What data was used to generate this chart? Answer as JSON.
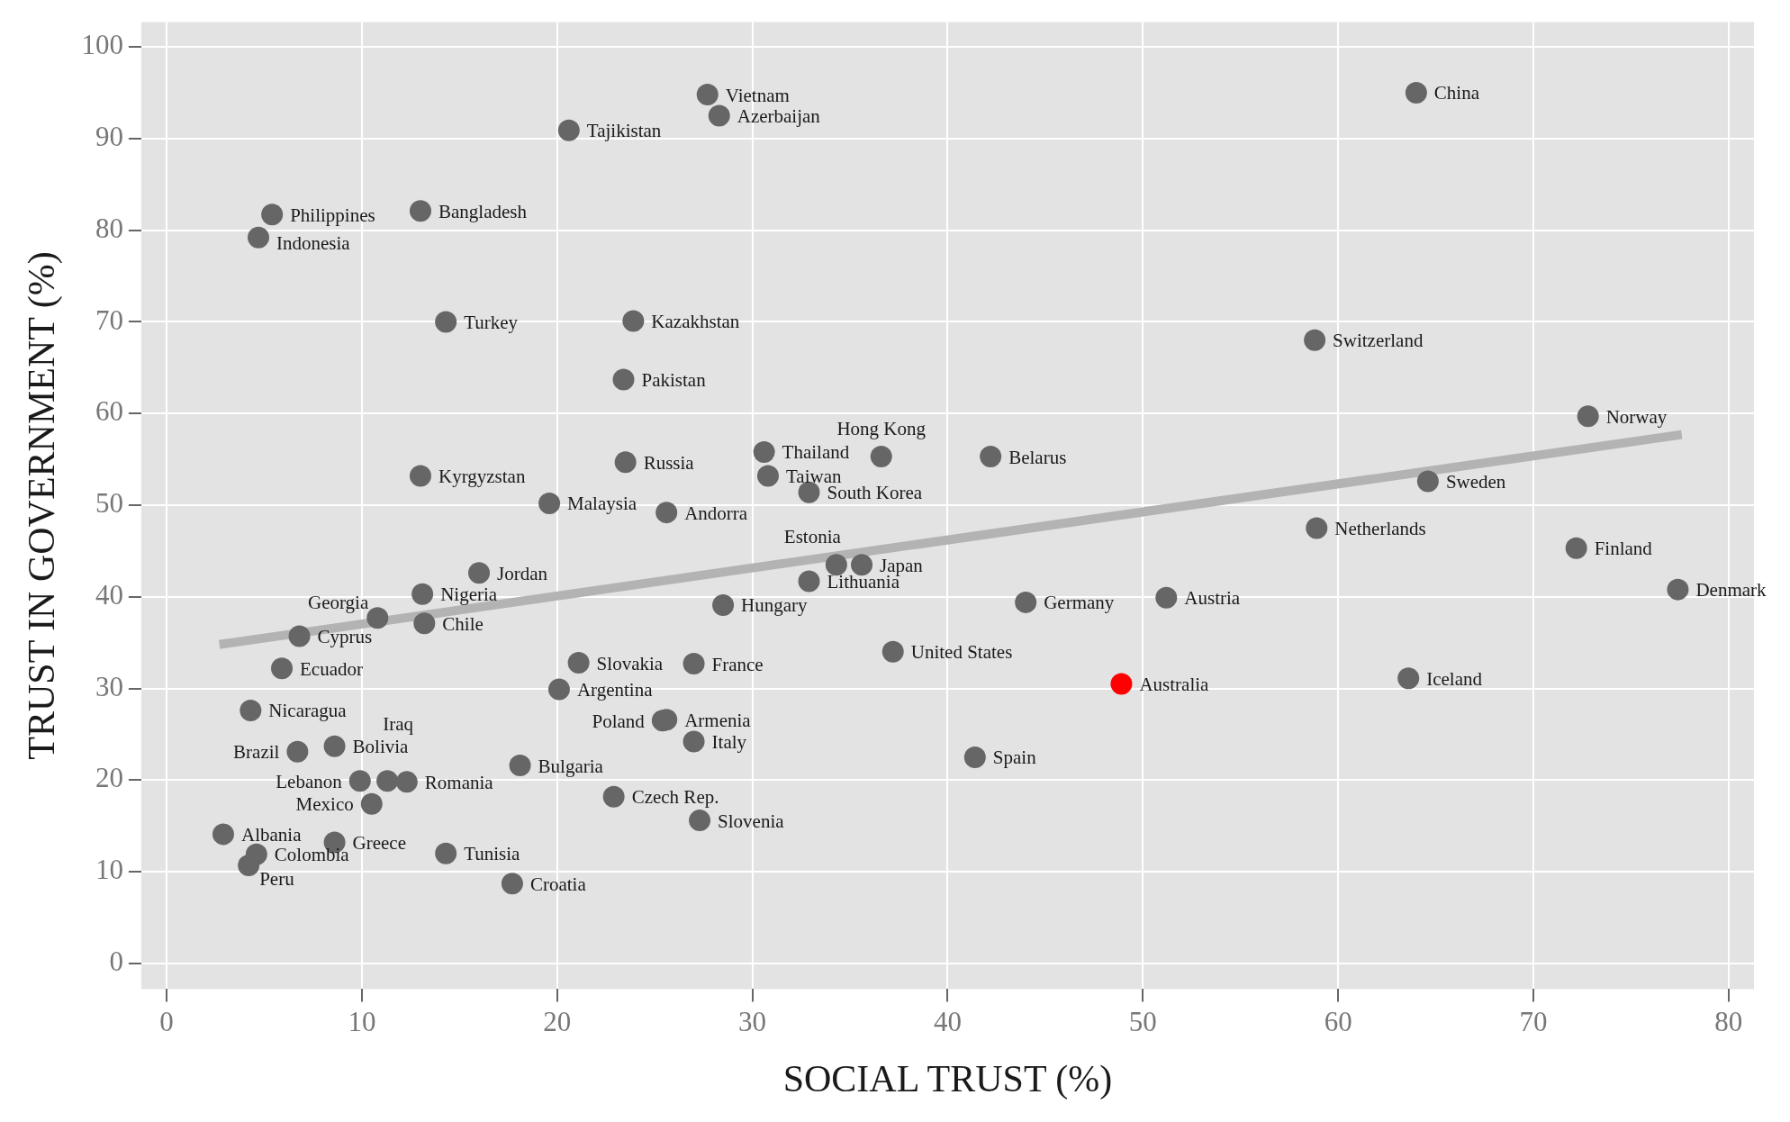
{
  "chart_data": {
    "type": "scatter",
    "xlabel": "SOCIAL TRUST (%)",
    "ylabel": "TRUST IN GOVERNMENT (%)",
    "xlim": [
      -1.3,
      81.3
    ],
    "xticks": [
      0,
      10,
      20,
      30,
      40,
      50,
      60,
      70,
      80
    ],
    "ylim": [
      -2.8,
      102.7
    ],
    "yticks": [
      0,
      10,
      20,
      30,
      40,
      50,
      60,
      70,
      80,
      90,
      100
    ],
    "grid": true,
    "legend": false,
    "marker": "circle",
    "series": [
      {
        "type": "line",
        "color": "#b3b3b3",
        "marker": "none",
        "x": [
          2.7,
          77.6
        ],
        "values": [
          34.8,
          57.7
        ]
      },
      {
        "color": "#666666",
        "x": [
          27.7,
          64.0,
          28.3,
          20.6,
          5.4,
          13.0,
          4.7,
          14.3,
          23.9,
          58.8,
          23.4,
          72.8,
          36.6,
          30.6,
          42.2,
          23.5,
          13.0,
          30.8,
          64.6,
          32.9,
          19.6,
          25.6,
          58.9,
          72.2,
          34.3,
          35.6,
          16.0,
          32.9,
          77.4,
          13.1,
          51.2,
          44.0,
          28.5,
          10.8,
          13.2,
          6.8,
          37.2,
          5.9,
          21.1,
          27.0,
          63.6,
          20.1,
          4.3,
          25.4,
          25.6,
          27.0,
          6.7,
          8.6,
          41.4,
          18.1,
          9.9,
          11.3,
          12.3,
          22.9,
          10.5,
          27.3,
          2.9,
          8.6,
          4.6,
          14.3,
          4.2,
          17.7
        ],
        "values": [
          94.8,
          95.0,
          92.5,
          90.9,
          81.7,
          82.1,
          79.2,
          70.0,
          70.1,
          68.0,
          63.7,
          59.7,
          55.3,
          55.8,
          55.3,
          54.7,
          53.2,
          53.2,
          52.6,
          51.4,
          50.2,
          49.2,
          47.5,
          45.3,
          43.5,
          43.5,
          42.6,
          41.7,
          40.8,
          40.3,
          39.9,
          39.4,
          39.1,
          37.7,
          37.1,
          35.7,
          34.0,
          32.2,
          32.8,
          32.7,
          31.1,
          29.9,
          27.6,
          26.5,
          26.6,
          24.2,
          23.1,
          23.7,
          22.5,
          21.6,
          19.9,
          19.9,
          19.8,
          18.2,
          17.4,
          15.6,
          14.1,
          13.2,
          11.9,
          12.0,
          10.7,
          8.7
        ]
      },
      {
        "color": "#ff0000",
        "x": [
          48.9
        ],
        "values": [
          30.5
        ]
      }
    ],
    "annotations": [
      {
        "text": "Vietnam",
        "x": 27.7,
        "y": 94.8
      },
      {
        "text": "China",
        "x": 64.0,
        "y": 95.0
      },
      {
        "text": "Azerbaijan",
        "x": 28.3,
        "y": 92.5
      },
      {
        "text": "Tajikistan",
        "x": 20.6,
        "y": 90.9
      },
      {
        "text": "Philippines",
        "x": 5.4,
        "y": 81.7
      },
      {
        "text": "Bangladesh",
        "x": 13.0,
        "y": 82.1
      },
      {
        "text": "Indonesia",
        "x": 4.7,
        "y": 79.2
      },
      {
        "text": "Turkey",
        "x": 14.3,
        "y": 70.0
      },
      {
        "text": "Kazakhstan",
        "x": 23.9,
        "y": 70.1
      },
      {
        "text": "Switzerland",
        "x": 58.8,
        "y": 68.0
      },
      {
        "text": "Pakistan",
        "x": 23.4,
        "y": 63.7
      },
      {
        "text": "Norway",
        "x": 72.8,
        "y": 59.7
      },
      {
        "text": "Hong Kong",
        "x": 36.6,
        "y": 55.3
      },
      {
        "text": "Thailand",
        "x": 30.6,
        "y": 55.8
      },
      {
        "text": "Belarus",
        "x": 42.2,
        "y": 55.3
      },
      {
        "text": "Russia",
        "x": 23.5,
        "y": 54.7
      },
      {
        "text": "Kyrgyzstan",
        "x": 13.0,
        "y": 53.2
      },
      {
        "text": "Taiwan",
        "x": 30.8,
        "y": 53.2
      },
      {
        "text": "Sweden",
        "x": 64.6,
        "y": 52.6
      },
      {
        "text": "South Korea",
        "x": 32.9,
        "y": 51.4
      },
      {
        "text": "Malaysia",
        "x": 19.6,
        "y": 50.2
      },
      {
        "text": "Andorra",
        "x": 25.6,
        "y": 49.2
      },
      {
        "text": "Netherlands",
        "x": 58.9,
        "y": 47.5
      },
      {
        "text": "Finland",
        "x": 72.2,
        "y": 45.3
      },
      {
        "text": "Estonia",
        "x": 34.3,
        "y": 43.5
      },
      {
        "text": "Japan",
        "x": 35.6,
        "y": 43.5
      },
      {
        "text": "Jordan",
        "x": 16.0,
        "y": 42.6
      },
      {
        "text": "Lithuania",
        "x": 32.9,
        "y": 41.7
      },
      {
        "text": "Denmark",
        "x": 77.4,
        "y": 40.8
      },
      {
        "text": "Nigeria",
        "x": 13.1,
        "y": 40.3
      },
      {
        "text": "Austria",
        "x": 51.2,
        "y": 39.9
      },
      {
        "text": "Germany",
        "x": 44.0,
        "y": 39.4
      },
      {
        "text": "Hungary",
        "x": 28.5,
        "y": 39.1
      },
      {
        "text": "Georgia",
        "x": 10.8,
        "y": 37.7
      },
      {
        "text": "Chile",
        "x": 13.2,
        "y": 37.1
      },
      {
        "text": "Cyprus",
        "x": 6.8,
        "y": 35.7
      },
      {
        "text": "United States",
        "x": 37.2,
        "y": 34.0
      },
      {
        "text": "Ecuador",
        "x": 5.9,
        "y": 32.2
      },
      {
        "text": "Slovakia",
        "x": 21.1,
        "y": 32.8
      },
      {
        "text": "France",
        "x": 27.0,
        "y": 32.7
      },
      {
        "text": "Iceland",
        "x": 63.6,
        "y": 31.1
      },
      {
        "text": "Argentina",
        "x": 20.1,
        "y": 29.9
      },
      {
        "text": "Nicaragua",
        "x": 4.3,
        "y": 27.6
      },
      {
        "text": "Poland",
        "x": 25.4,
        "y": 26.5
      },
      {
        "text": "Armenia",
        "x": 25.6,
        "y": 26.6
      },
      {
        "text": "Italy",
        "x": 27.0,
        "y": 24.2
      },
      {
        "text": "Brazil",
        "x": 6.7,
        "y": 23.1
      },
      {
        "text": "Bolivia",
        "x": 8.6,
        "y": 23.7
      },
      {
        "text": "Spain",
        "x": 41.4,
        "y": 22.5
      },
      {
        "text": "Bulgaria",
        "x": 18.1,
        "y": 21.6
      },
      {
        "text": "Lebanon",
        "x": 9.9,
        "y": 19.9
      },
      {
        "text": "Iraq",
        "x": 11.3,
        "y": 19.9
      },
      {
        "text": "Romania",
        "x": 12.3,
        "y": 19.8
      },
      {
        "text": "Czech Rep.",
        "x": 22.9,
        "y": 18.2
      },
      {
        "text": "Mexico",
        "x": 10.5,
        "y": 17.4
      },
      {
        "text": "Slovenia",
        "x": 27.3,
        "y": 15.6
      },
      {
        "text": "Albania",
        "x": 2.9,
        "y": 14.1
      },
      {
        "text": "Greece",
        "x": 8.6,
        "y": 13.2
      },
      {
        "text": "Colombia",
        "x": 4.6,
        "y": 11.9
      },
      {
        "text": "Tunisia",
        "x": 14.3,
        "y": 12.0
      },
      {
        "text": "Peru",
        "x": 4.2,
        "y": 10.7
      },
      {
        "text": "Croatia",
        "x": 17.7,
        "y": 8.7
      },
      {
        "text": "Australia",
        "x": 48.9,
        "y": 30.5
      }
    ]
  }
}
